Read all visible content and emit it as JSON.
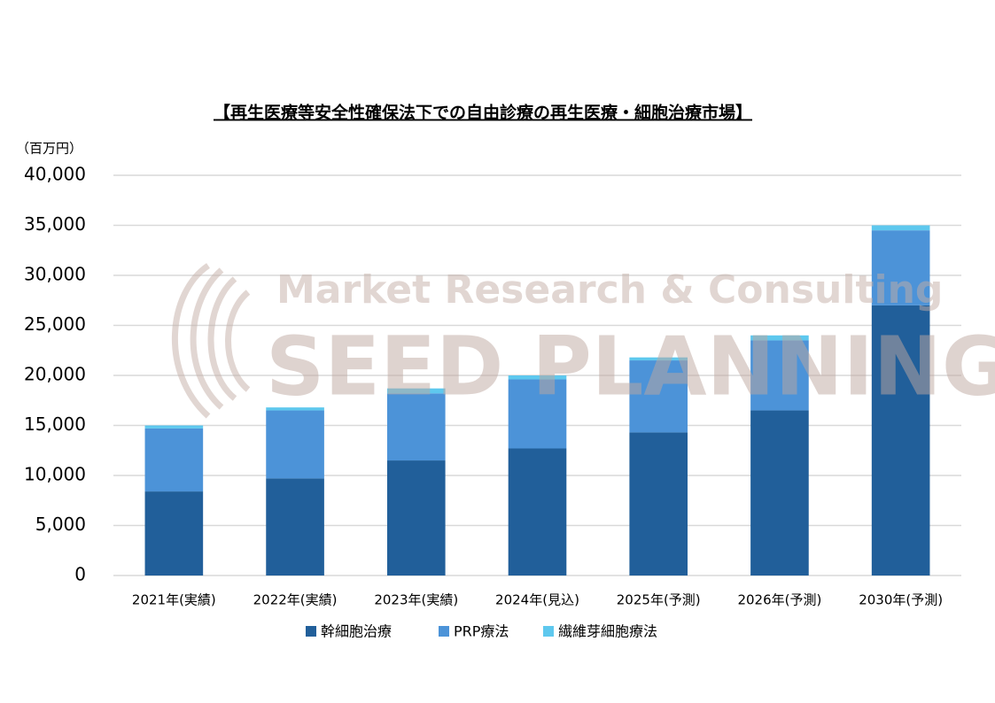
{
  "chart_data": {
    "type": "stacked_bar",
    "title": "【再生医療等安全性確保法下での自由診療の再生医療・細胞治療市場】",
    "y_axis_label": "（百万円）",
    "watermark": [
      "Market Research & Consulting",
      "SEED PLANNING"
    ],
    "categories": [
      "2021年(実績)",
      "2022年(実績)",
      "2023年(実績)",
      "2024年(見込)",
      "2025年(予測)",
      "2026年(予測)",
      "2030年(予測)"
    ],
    "series": [
      {
        "name": "幹細胞治療",
        "color": "#215f9a",
        "values": [
          8400,
          9700,
          11500,
          12700,
          14300,
          16500,
          27000
        ]
      },
      {
        "name": "PRP療法",
        "color": "#4c93d8",
        "values": [
          6300,
          6800,
          6700,
          6900,
          7200,
          7000,
          7500
        ]
      },
      {
        "name": "繊維芽細胞療法",
        "color": "#5ec8ee",
        "values": [
          300,
          300,
          500,
          400,
          300,
          500,
          500
        ]
      }
    ],
    "ylim": [
      0,
      40000
    ],
    "yticks": [
      0,
      {
        "value": 5000,
        "label": "5,000"
      },
      {
        "value": 10000,
        "label": "10,000"
      },
      {
        "value": 15000,
        "label": "15,000"
      },
      {
        "value": 20000,
        "label": "20,000"
      },
      {
        "value": 25000,
        "label": "25,000"
      },
      {
        "value": 30000,
        "label": "30,000"
      },
      {
        "value": 35000,
        "label": "35,000"
      },
      {
        "value": 40000,
        "label": "40,000"
      }
    ],
    "grid": true,
    "legend": "bottom"
  }
}
